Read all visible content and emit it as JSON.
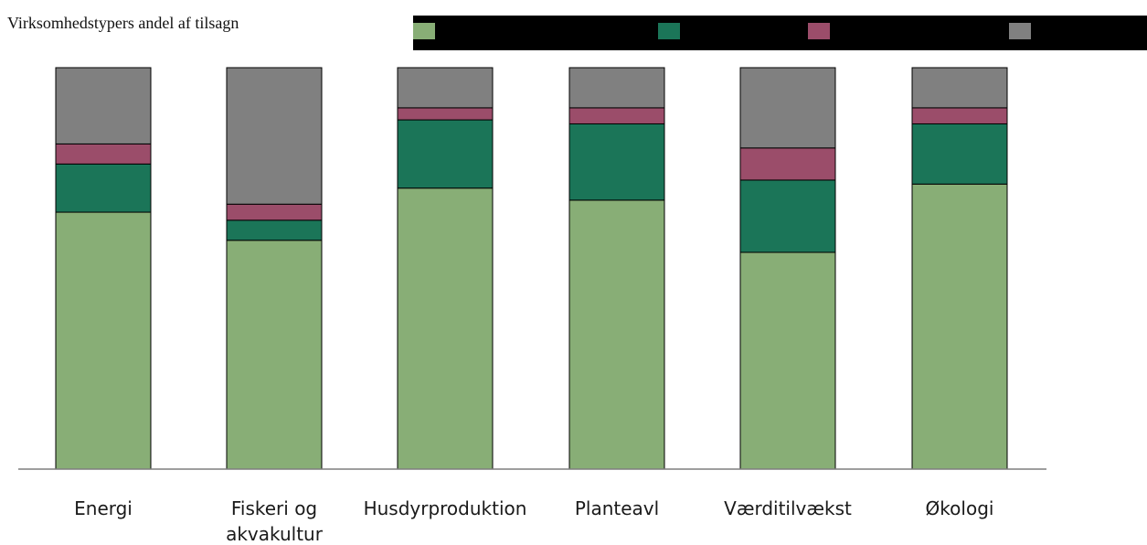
{
  "chart_data": {
    "type": "bar",
    "stacked": true,
    "title": "Virksomhedstypers andel af tilsagn",
    "categories": [
      [
        "Energi"
      ],
      [
        "Fiskeri og",
        "akvakultur"
      ],
      [
        "Husdyrproduktion"
      ],
      [
        "Planteavl"
      ],
      [
        "Værditilvækst"
      ],
      [
        "Økologi"
      ]
    ],
    "series": [
      {
        "color": "#88AE76",
        "values": [
          64,
          57,
          70,
          67,
          54,
          71
        ]
      },
      {
        "color": "#1B7558",
        "values": [
          12,
          5,
          17,
          19,
          18,
          15
        ]
      },
      {
        "color": "#9B4D6A",
        "values": [
          5,
          4,
          3,
          4,
          8,
          4
        ]
      },
      {
        "color": "#808080",
        "values": [
          19,
          34,
          10,
          10,
          20,
          10
        ]
      }
    ],
    "ylim": [
      0,
      100
    ],
    "grid": false,
    "legend": "top-right"
  }
}
